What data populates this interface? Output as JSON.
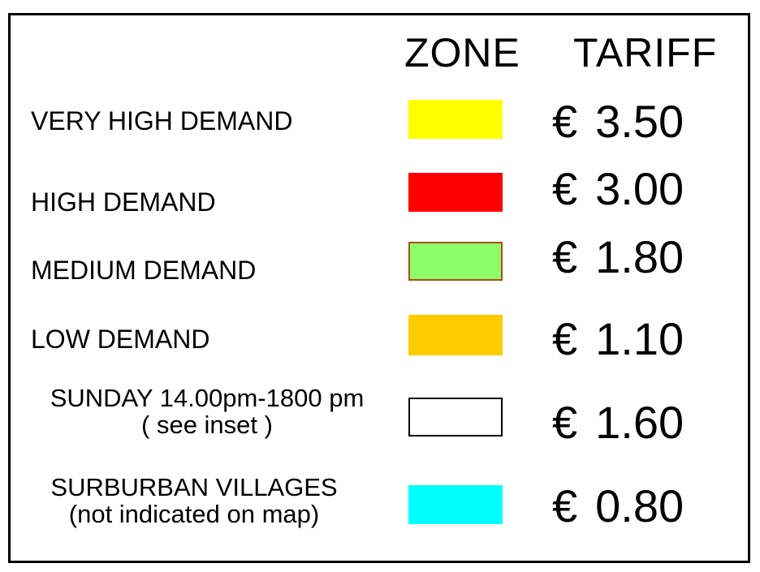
{
  "headers": {
    "zone": "ZONE",
    "tariff": "TARIFF"
  },
  "rows": [
    {
      "label": "VERY HIGH DEMAND",
      "label2": "",
      "color": "#ffff00",
      "border": "#ffff00",
      "currency": "€",
      "price": "3.50"
    },
    {
      "label": "HIGH DEMAND",
      "label2": "",
      "color": "#ff0000",
      "border": "#ff0000",
      "currency": "€",
      "price": "3.00"
    },
    {
      "label": "MEDIUM DEMAND",
      "label2": "",
      "color": "#8cff6a",
      "border": "#b34a1a",
      "currency": "€",
      "price": "1.80"
    },
    {
      "label": "LOW DEMAND",
      "label2": "",
      "color": "#ffcc00",
      "border": "#ffcc00",
      "currency": "€",
      "price": "1.10"
    },
    {
      "label": "SUNDAY 14.00pm-1800 pm",
      "label2": "( see inset )",
      "color": "#ffffff",
      "border": "#000000",
      "currency": "€",
      "price": "1.60"
    },
    {
      "label": "SURBURBAN VILLAGES",
      "label2": "(not indicated on map)",
      "color": "#00ffff",
      "border": "#00ffff",
      "currency": "€",
      "price": "0.80"
    }
  ]
}
